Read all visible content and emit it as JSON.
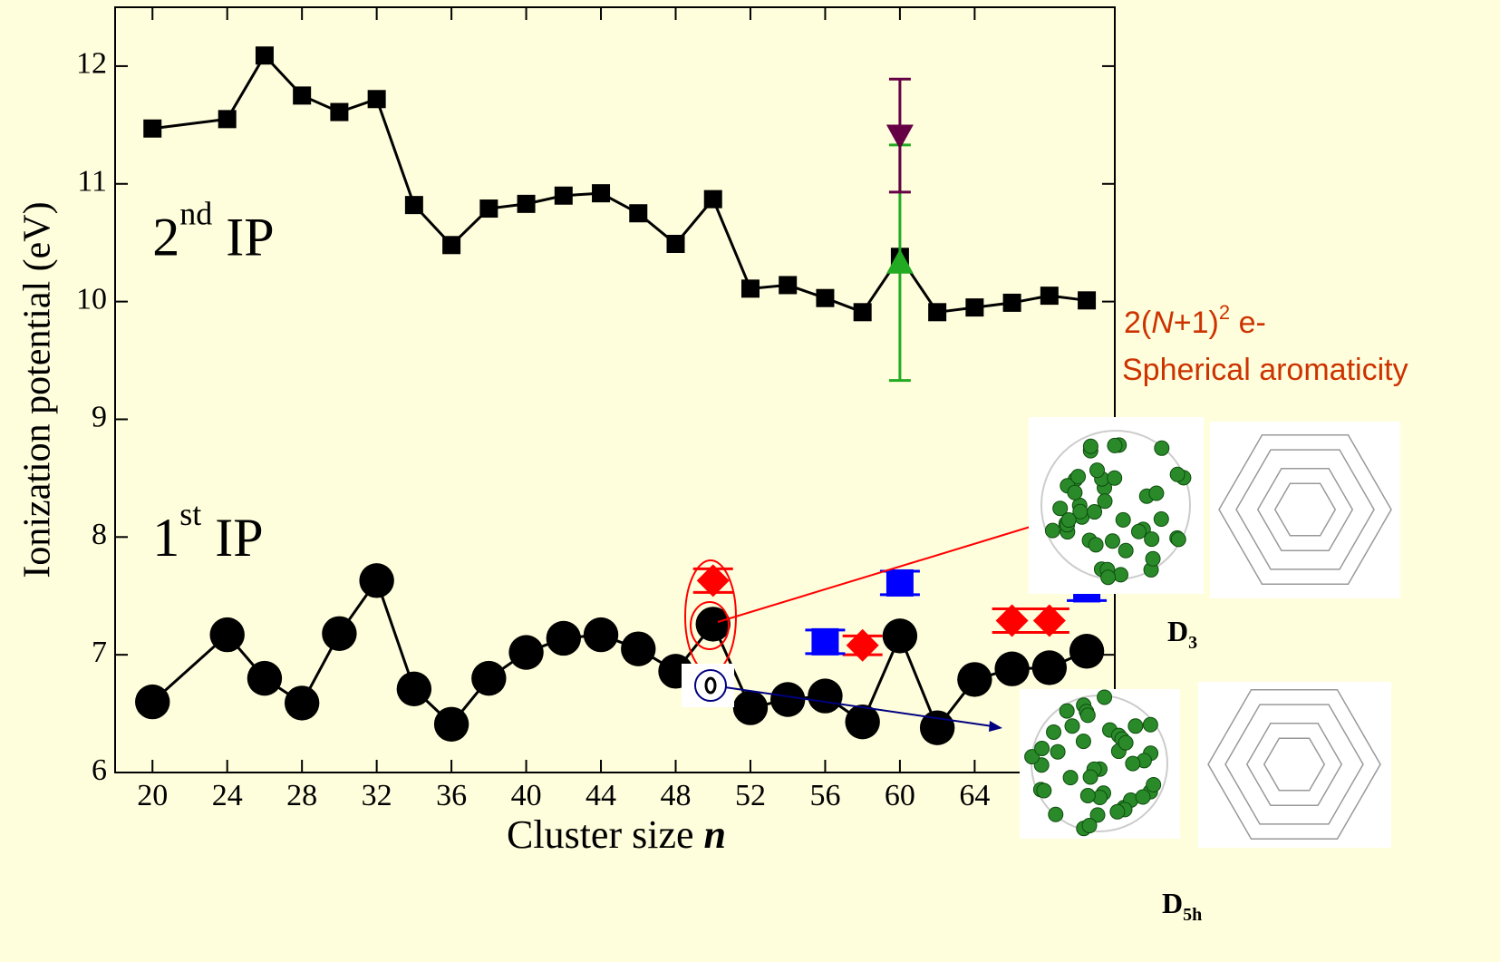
{
  "chart_data": {
    "type": "line",
    "x_label": "Cluster size",
    "x_label_var": "n",
    "y_label": "Ionization potential (eV)",
    "xlim": [
      18,
      71.5
    ],
    "ylim": [
      6,
      12.5
    ],
    "xticks": [
      20,
      24,
      28,
      32,
      36,
      40,
      44,
      48,
      52,
      56,
      60,
      64
    ],
    "yticks": [
      6,
      7,
      8,
      9,
      10,
      11,
      12
    ],
    "series": [
      {
        "color": "#000000",
        "marker": "square",
        "line": true,
        "x": [
          20,
          24,
          26,
          28,
          30,
          32,
          34,
          36,
          38,
          40,
          42,
          44,
          46,
          48,
          50,
          52,
          54,
          56,
          58,
          60,
          62,
          64,
          66,
          68,
          70
        ],
        "values": [
          11.47,
          11.55,
          12.09,
          11.75,
          11.61,
          11.72,
          10.82,
          10.48,
          10.79,
          10.83,
          10.9,
          10.92,
          10.75,
          10.49,
          10.87,
          10.11,
          10.14,
          10.03,
          9.91,
          10.38,
          9.91,
          9.95,
          9.99,
          10.05,
          10.01
        ]
      },
      {
        "color": "#000000",
        "marker": "circle",
        "line": true,
        "x": [
          20,
          24,
          26,
          28,
          30,
          32,
          34,
          36,
          38,
          40,
          42,
          44,
          46,
          48,
          50,
          52,
          54,
          56,
          58,
          60,
          62,
          64,
          66,
          68,
          70
        ],
        "values": [
          6.6,
          7.17,
          6.8,
          6.59,
          7.18,
          7.63,
          6.71,
          6.41,
          6.8,
          7.02,
          7.14,
          7.17,
          7.05,
          6.86,
          7.26,
          6.55,
          6.62,
          6.65,
          6.43,
          7.16,
          6.38,
          6.79,
          6.88,
          6.89,
          7.03
        ]
      },
      {
        "color": "#ff0000",
        "marker": "diamond",
        "line": false,
        "x": [
          50,
          58,
          66,
          68
        ],
        "values": [
          7.63,
          7.08,
          7.29,
          7.29
        ],
        "errors": [
          0.1,
          0.08,
          0.1,
          0.1
        ]
      },
      {
        "color": "#0000ff",
        "marker": "square",
        "line": false,
        "x": [
          56,
          60,
          70
        ],
        "values": [
          7.11,
          7.61,
          7.56
        ],
        "errors": [
          0.1,
          0.1,
          0.1
        ]
      },
      {
        "color": "#22aa22",
        "marker": "triangle",
        "line": false,
        "x": [
          60
        ],
        "values": [
          10.33
        ],
        "errors": [
          1.0
        ]
      },
      {
        "color": "#660044",
        "marker": "triangle-down",
        "line": false,
        "x": [
          60
        ],
        "values": [
          11.41
        ],
        "errors": [
          0.48
        ]
      }
    ],
    "annotations": [
      {
        "parts": [
          "2",
          "nd",
          " IP"
        ],
        "x": 20,
        "y": 10.5
      },
      {
        "parts": [
          "1",
          "st",
          " IP"
        ],
        "x": 20,
        "y": 7.95
      }
    ],
    "rule_text": [
      "2(",
      "N",
      "+1)",
      "2",
      " e-"
    ],
    "rule_caption": "Spherical aromaticity",
    "isomers": [
      [
        "D",
        "3"
      ],
      [
        "D",
        "5h"
      ]
    ]
  }
}
